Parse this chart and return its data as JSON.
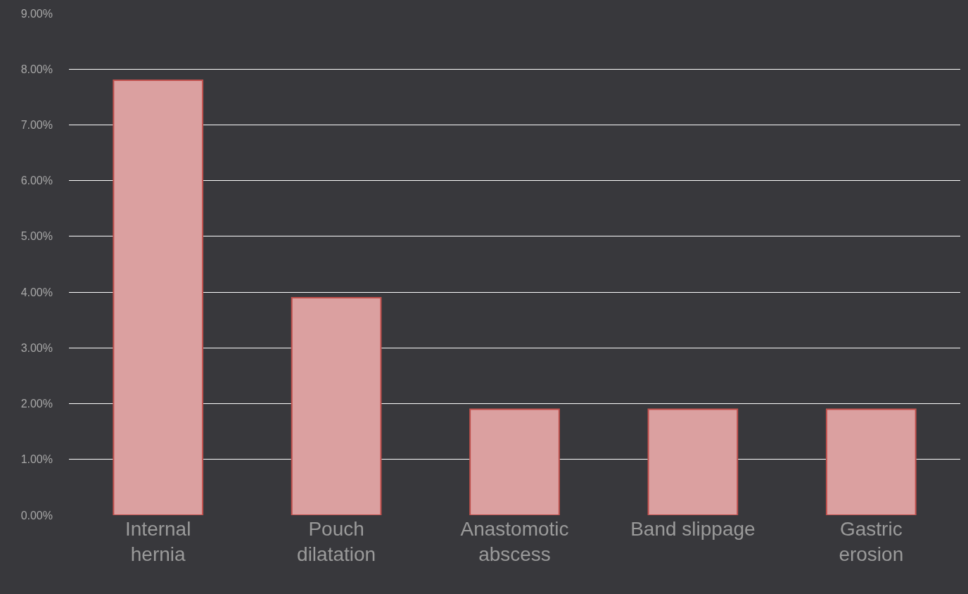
{
  "chart_data": {
    "type": "bar",
    "categories": [
      "Internal hernia",
      "Pouch dilatation",
      "Anastomotic abscess",
      "Band slippage",
      "Gastric erosion"
    ],
    "values": [
      7.8,
      3.9,
      1.9,
      1.9,
      1.9
    ],
    "color": "#dba0a0",
    "ylim": [
      0,
      9
    ],
    "yticks": [
      {
        "value": 0,
        "label": "0.00%"
      },
      {
        "value": 1,
        "label": "1.00%"
      },
      {
        "value": 2,
        "label": "2.00%"
      },
      {
        "value": 3,
        "label": "3.00%"
      },
      {
        "value": 4,
        "label": "4.00%"
      },
      {
        "value": 5,
        "label": "5.00%"
      },
      {
        "value": 6,
        "label": "6.00%"
      },
      {
        "value": 7,
        "label": "7.00%"
      },
      {
        "value": 8,
        "label": "8.00%"
      },
      {
        "value": 9,
        "label": "9.00%"
      }
    ],
    "grid": "y",
    "legend": false
  }
}
